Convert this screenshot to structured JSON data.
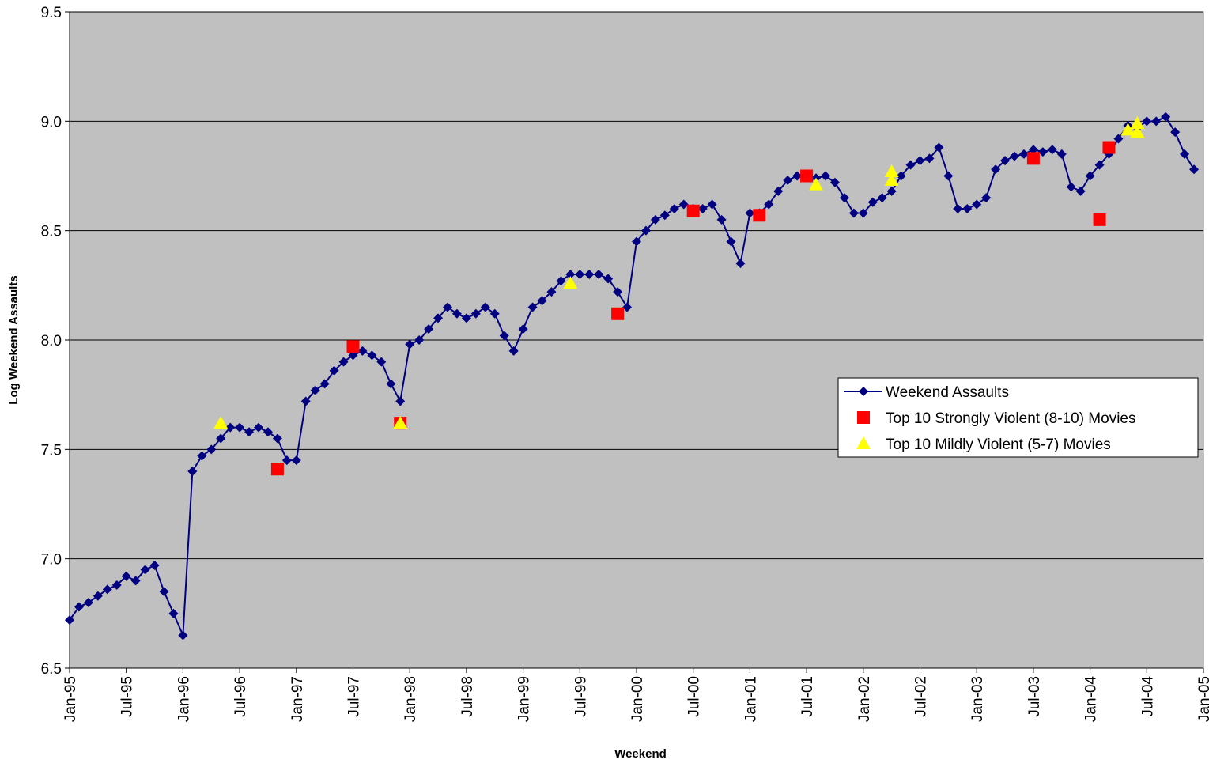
{
  "chart_data": {
    "type": "line",
    "y_label": "Log Weekend Assaults",
    "x_label": "Weekend",
    "xlim": [
      "1995-01",
      "2005-01"
    ],
    "xticks": [
      {
        "value": "1995-01",
        "label": "Jan-95"
      },
      {
        "value": "1995-07",
        "label": "Jul-95"
      },
      {
        "value": "1996-01",
        "label": "Jan-96"
      },
      {
        "value": "1996-07",
        "label": "Jul-96"
      },
      {
        "value": "1997-01",
        "label": "Jan-97"
      },
      {
        "value": "1997-07",
        "label": "Jul-97"
      },
      {
        "value": "1998-01",
        "label": "Jan-98"
      },
      {
        "value": "1998-07",
        "label": "Jul-98"
      },
      {
        "value": "1999-01",
        "label": "Jan-99"
      },
      {
        "value": "1999-07",
        "label": "Jul-99"
      },
      {
        "value": "2000-01",
        "label": "Jan-00"
      },
      {
        "value": "2000-07",
        "label": "Jul-00"
      },
      {
        "value": "2001-01",
        "label": "Jan-01"
      },
      {
        "value": "2001-07",
        "label": "Jul-01"
      },
      {
        "value": "2002-01",
        "label": "Jan-02"
      },
      {
        "value": "2002-07",
        "label": "Jul-02"
      },
      {
        "value": "2003-01",
        "label": "Jan-03"
      },
      {
        "value": "2003-07",
        "label": "Jul-03"
      },
      {
        "value": "2004-01",
        "label": "Jan-04"
      },
      {
        "value": "2004-07",
        "label": "Jul-04"
      },
      {
        "value": "2005-01",
        "label": "Jan-05"
      }
    ],
    "ylim": [
      6.5,
      9.5
    ],
    "yticks": [
      6.5,
      {
        "value": 7,
        "label": "7.0"
      },
      7.5,
      {
        "value": 8,
        "label": "8.0"
      },
      8.5,
      {
        "value": 9,
        "label": "9.0"
      },
      9.5
    ],
    "grid": true,
    "plot_background": "#c0c0c0",
    "x": [
      "1995-01",
      "1995-02",
      "1995-03",
      "1995-04",
      "1995-05",
      "1995-06",
      "1995-07",
      "1995-08",
      "1995-09",
      "1995-10",
      "1995-11",
      "1995-12",
      "1996-01",
      "1996-02",
      "1996-03",
      "1996-04",
      "1996-05",
      "1996-06",
      "1996-07",
      "1996-08",
      "1996-09",
      "1996-10",
      "1996-11",
      "1996-12",
      "1997-01",
      "1997-02",
      "1997-03",
      "1997-04",
      "1997-05",
      "1997-06",
      "1997-07",
      "1997-08",
      "1997-09",
      "1997-10",
      "1997-11",
      "1997-12",
      "1998-01",
      "1998-02",
      "1998-03",
      "1998-04",
      "1998-05",
      "1998-06",
      "1998-07",
      "1998-08",
      "1998-09",
      "1998-10",
      "1998-11",
      "1998-12",
      "1999-01",
      "1999-02",
      "1999-03",
      "1999-04",
      "1999-05",
      "1999-06",
      "1999-07",
      "1999-08",
      "1999-09",
      "1999-10",
      "1999-11",
      "1999-12",
      "2000-01",
      "2000-02",
      "2000-03",
      "2000-04",
      "2000-05",
      "2000-06",
      "2000-07",
      "2000-08",
      "2000-09",
      "2000-10",
      "2000-11",
      "2000-12",
      "2001-01",
      "2001-02",
      "2001-03",
      "2001-04",
      "2001-05",
      "2001-06",
      "2001-07",
      "2001-08",
      "2001-09",
      "2001-10",
      "2001-11",
      "2001-12",
      "2002-01",
      "2002-02",
      "2002-03",
      "2002-04",
      "2002-05",
      "2002-06",
      "2002-07",
      "2002-08",
      "2002-09",
      "2002-10",
      "2002-11",
      "2002-12",
      "2003-01",
      "2003-02",
      "2003-03",
      "2003-04",
      "2003-05",
      "2003-06",
      "2003-07",
      "2003-08",
      "2003-09",
      "2003-10",
      "2003-11",
      "2003-12",
      "2004-01",
      "2004-02",
      "2004-03",
      "2004-04",
      "2004-05",
      "2004-06",
      "2004-07",
      "2004-08",
      "2004-09",
      "2004-10",
      "2004-11",
      "2004-12"
    ],
    "series": [
      {
        "name": "Weekend Assaults",
        "color": "#000080",
        "marker": "diamond",
        "line": true,
        "values": [
          6.72,
          6.78,
          6.8,
          6.83,
          6.86,
          6.88,
          6.92,
          6.9,
          6.95,
          6.97,
          6.85,
          6.75,
          6.65,
          7.4,
          7.47,
          7.5,
          7.55,
          7.6,
          7.6,
          7.58,
          7.6,
          7.58,
          7.55,
          7.45,
          7.45,
          7.72,
          7.77,
          7.8,
          7.86,
          7.9,
          7.93,
          7.95,
          7.93,
          7.9,
          7.8,
          7.72,
          7.98,
          8.0,
          8.05,
          8.1,
          8.15,
          8.12,
          8.1,
          8.12,
          8.15,
          8.12,
          8.02,
          7.95,
          8.05,
          8.15,
          8.18,
          8.22,
          8.27,
          8.3,
          8.3,
          8.3,
          8.3,
          8.28,
          8.22,
          8.15,
          8.45,
          8.5,
          8.55,
          8.57,
          8.6,
          8.62,
          8.6,
          8.6,
          8.62,
          8.55,
          8.45,
          8.35,
          8.58,
          8.58,
          8.62,
          8.68,
          8.73,
          8.75,
          8.75,
          8.74,
          8.75,
          8.72,
          8.65,
          8.58,
          8.58,
          8.63,
          8.65,
          8.68,
          8.75,
          8.8,
          8.82,
          8.83,
          8.88,
          8.75,
          8.6,
          8.6,
          8.62,
          8.65,
          8.78,
          8.82,
          8.84,
          8.85,
          8.87,
          8.86,
          8.87,
          8.85,
          8.7,
          8.68,
          8.75,
          8.8,
          8.85,
          8.92,
          8.98,
          8.97,
          9.0,
          9.0,
          9.02,
          8.95,
          8.85,
          8.78
        ]
      },
      {
        "name": "Top 10 Strongly Violent (8-10) Movies",
        "color": "#ff0000",
        "marker": "square",
        "line": false,
        "x": [
          "1996-11",
          "1997-07",
          "1997-12",
          "1999-11",
          "2000-07",
          "2001-02",
          "2001-07",
          "2003-07",
          "2004-02",
          "2004-03"
        ],
        "values": [
          7.41,
          7.97,
          7.62,
          8.12,
          8.59,
          8.57,
          8.75,
          8.83,
          8.55,
          8.88
        ]
      },
      {
        "name": "Top 10 Mildly Violent (5-7) Movies",
        "color": "#ffff00",
        "marker": "triangle",
        "line": false,
        "x": [
          "1996-05",
          "1997-12",
          "1999-06",
          "2001-08",
          "2002-04",
          "2002-04",
          "2004-05",
          "2004-06",
          "2004-06"
        ],
        "values": [
          7.62,
          7.62,
          8.26,
          8.71,
          8.73,
          8.77,
          8.96,
          8.95,
          8.99
        ]
      }
    ]
  }
}
